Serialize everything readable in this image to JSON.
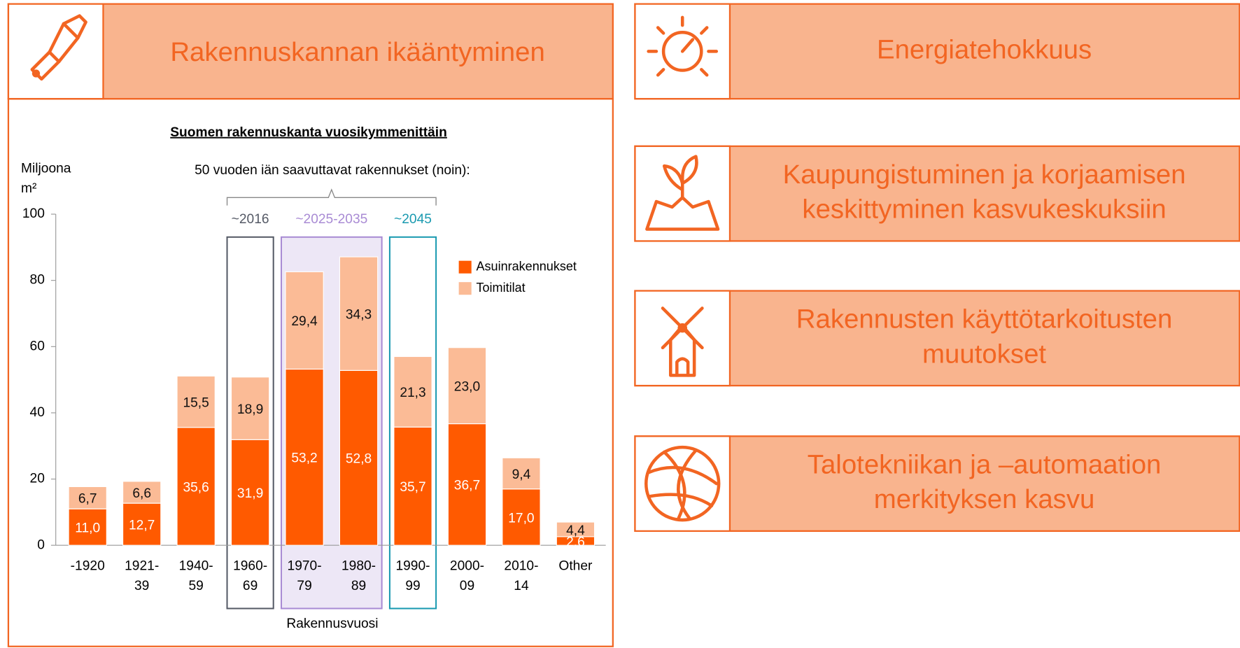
{
  "left_panel": {
    "title": "Rakennuskannan ikääntyminen"
  },
  "right_panels": [
    {
      "title_lines": [
        "Energiatehokkuus"
      ]
    },
    {
      "title_lines": [
        "Kaupungistuminen ja korjaamisen",
        "keskittyminen kasvukeskuksiin"
      ]
    },
    {
      "title_lines": [
        "Rakennusten käyttötarkoitusten",
        "muutokset"
      ]
    },
    {
      "title_lines": [
        "Talotekniikan ja –automaation",
        "merkityksen kasvu"
      ]
    }
  ],
  "chart_data": {
    "type": "bar",
    "stacked": true,
    "title": "Suomen rakennuskanta vuosikymmenittäin",
    "ylabel_lines": [
      "Miljoona",
      "m²"
    ],
    "xlabel": "Rakennusvuosi",
    "annotation": "50 vuoden iän saavuttavat rakennukset (noin):",
    "categories": [
      "-1920",
      "1921-39",
      "1940-59",
      "1960-69",
      "1970-79",
      "1980-89",
      "1990-99",
      "2000-09",
      "2010-14",
      "Other"
    ],
    "series": [
      {
        "name": "Asuinrakennukset",
        "color": "#ff5a00",
        "values": [
          11.0,
          12.7,
          35.6,
          31.9,
          53.2,
          52.8,
          35.7,
          36.7,
          17.0,
          2.6
        ],
        "value_labels": [
          "11,0",
          "12,7",
          "35,6",
          "31,9",
          "53,2",
          "52,8",
          "35,7",
          "36,7",
          "17,0",
          "2,6"
        ]
      },
      {
        "name": "Toimitilat",
        "color": "#fbbb96",
        "values": [
          6.7,
          6.6,
          15.5,
          18.9,
          29.4,
          34.3,
          21.3,
          23.0,
          9.4,
          4.4
        ],
        "value_labels": [
          "6,7",
          "6,6",
          "15,5",
          "18,9",
          "29,4",
          "34,3",
          "21,3",
          "23,0",
          "9,4",
          "4,4"
        ]
      }
    ],
    "groups": [
      {
        "label": "~2016",
        "color": "#555a66",
        "fill": "none",
        "categories": [
          "1960-69"
        ]
      },
      {
        "label": "~2025-2035",
        "color": "#a98bd4",
        "fill": "#ede7f6",
        "categories": [
          "1970-79",
          "1980-89"
        ]
      },
      {
        "label": "~2045",
        "color": "#1a9ab0",
        "fill": "none",
        "categories": [
          "1990-99"
        ]
      }
    ],
    "ylim": [
      0,
      100
    ],
    "yticks": [
      0,
      20,
      40,
      60,
      80,
      100
    ],
    "legend": "upper right"
  }
}
